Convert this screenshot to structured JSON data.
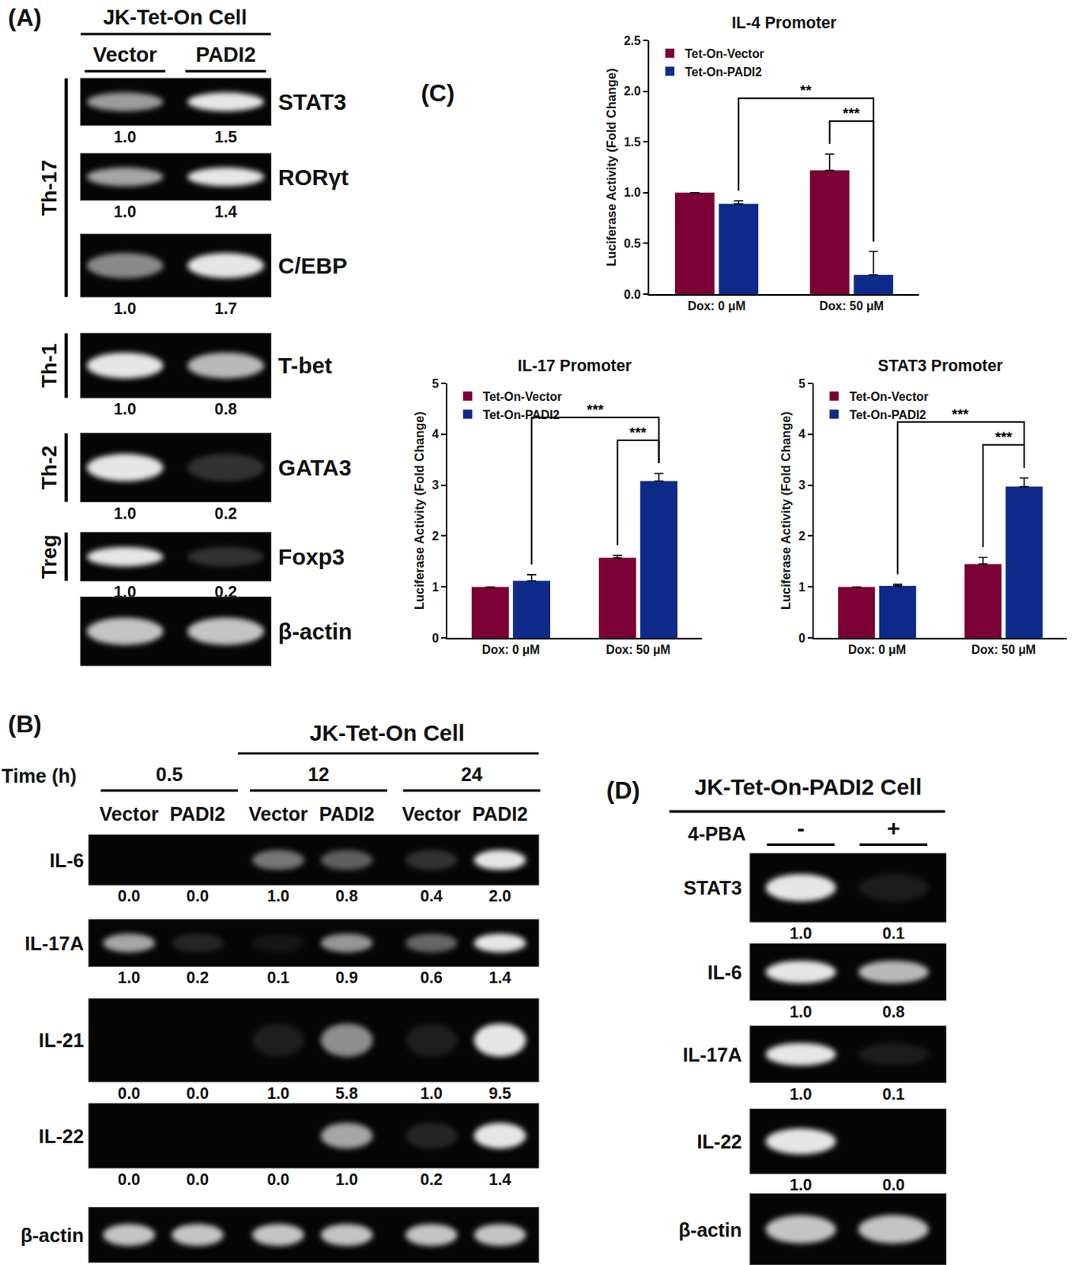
{
  "panels": {
    "A": {
      "label": "(A)",
      "header": "JK-Tet-On Cell",
      "lanes": [
        "Vector",
        "PADI2"
      ],
      "groups": [
        {
          "name": "Th-17",
          "markers": [
            "STAT3",
            "RORγt",
            "C/EBP"
          ]
        },
        {
          "name": "Th-1",
          "markers": [
            "T-bet"
          ]
        },
        {
          "name": "Th-2",
          "markers": [
            "GATA3"
          ]
        },
        {
          "name": "Treg",
          "markers": [
            "Foxp3"
          ]
        }
      ],
      "gels": [
        {
          "name": "STAT3",
          "values": [
            "1.0",
            "1.5"
          ]
        },
        {
          "name": "RORγt",
          "values": [
            "1.0",
            "1.4"
          ]
        },
        {
          "name": "C/EBP",
          "values": [
            "1.0",
            "1.7"
          ]
        },
        {
          "name": "T-bet",
          "values": [
            "1.0",
            "0.8"
          ]
        },
        {
          "name": "GATA3",
          "values": [
            "1.0",
            "0.2"
          ]
        },
        {
          "name": "Foxp3",
          "values": [
            "1.0",
            "0.2"
          ]
        },
        {
          "name": "β-actin"
        }
      ]
    },
    "B": {
      "label": "(B)",
      "header": "JK-Tet-On Cell",
      "time_label": "Time (h)",
      "times": [
        "0.5",
        "12",
        "24"
      ],
      "lanes": [
        "Vector",
        "PADI2"
      ],
      "gels": [
        {
          "name": "IL-6",
          "values": [
            "0.0",
            "0.0",
            "1.0",
            "0.8",
            "0.4",
            "2.0"
          ]
        },
        {
          "name": "IL-17A",
          "values": [
            "1.0",
            "0.2",
            "0.1",
            "0.9",
            "0.6",
            "1.4"
          ]
        },
        {
          "name": "IL-21",
          "values": [
            "0.0",
            "0.0",
            "1.0",
            "5.8",
            "1.0",
            "9.5"
          ]
        },
        {
          "name": "IL-22",
          "values": [
            "0.0",
            "0.0",
            "0.0",
            "1.0",
            "0.2",
            "1.4"
          ]
        },
        {
          "name": "β-actin"
        }
      ]
    },
    "C": {
      "label": "(C)"
    },
    "D": {
      "label": "(D)",
      "header": "JK-Tet-On-PADI2 Cell",
      "treatment": "4-PBA",
      "conditions": [
        "-",
        "+"
      ],
      "gels": [
        {
          "name": "STAT3",
          "values": [
            "1.0",
            "0.1"
          ]
        },
        {
          "name": "IL-6",
          "values": [
            "1.0",
            "0.8"
          ]
        },
        {
          "name": "IL-17A",
          "values": [
            "1.0",
            "0.1"
          ]
        },
        {
          "name": "IL-22",
          "values": [
            "1.0",
            "0.0"
          ]
        },
        {
          "name": "β-actin"
        }
      ]
    }
  },
  "chart_data": [
    {
      "type": "bar",
      "title": "IL-4 Promoter",
      "ylabel": "Luciferase Activity (Fold Change)",
      "categories": [
        "Dox: 0 μM",
        "Dox: 50 μM"
      ],
      "series": [
        {
          "name": "Tet-On-Vector",
          "color": "#7a0036",
          "values": [
            1.0,
            1.22
          ],
          "errors": [
            0,
            0.16
          ]
        },
        {
          "name": "Tet-On-PADI2",
          "color": "#0d2a8a",
          "values": [
            0.89,
            0.19
          ],
          "errors": [
            0.03,
            0.23
          ]
        }
      ],
      "ylim": [
        0,
        2.5
      ],
      "yticks": [
        {
          "value": 0,
          "label": "0.0"
        },
        {
          "value": 0.5,
          "label": "0.5"
        },
        {
          "value": 1,
          "label": "1.0"
        },
        {
          "value": 1.5,
          "label": "1.5"
        },
        {
          "value": 2,
          "label": "2.0"
        },
        {
          "value": 2.5,
          "label": "2.5"
        }
      ],
      "grid": false,
      "legend": "upper left",
      "significance": [
        {
          "text": "***",
          "from": {
            "series": "Tet-On-Vector",
            "category": "Dox: 50 μM"
          },
          "to": {
            "series": "Tet-On-PADI2",
            "category": "Dox: 50 μM"
          }
        },
        {
          "text": "**",
          "from": {
            "series": "Tet-On-PADI2",
            "category": "Dox: 0 μM"
          },
          "to": {
            "series": "Tet-On-PADI2",
            "category": "Dox: 50 μM"
          }
        }
      ]
    },
    {
      "type": "bar",
      "title": "IL-17 Promoter",
      "ylabel": "Luciferase Activity (Fold Change)",
      "categories": [
        "Dox: 0 μM",
        "Dox: 50 μM"
      ],
      "series": [
        {
          "name": "Tet-On-Vector",
          "color": "#7a0036",
          "values": [
            1.0,
            1.57
          ],
          "errors": [
            0,
            0.05
          ]
        },
        {
          "name": "Tet-On-PADI2",
          "color": "#0d2a8a",
          "values": [
            1.12,
            3.08
          ],
          "errors": [
            0.12,
            0.15
          ]
        }
      ],
      "ylim": [
        0,
        5
      ],
      "yticks": [
        0,
        1,
        2,
        3,
        4,
        5
      ],
      "grid": false,
      "legend": "upper left",
      "significance": [
        {
          "text": "***",
          "from": {
            "series": "Tet-On-Vector",
            "category": "Dox: 50 μM"
          },
          "to": {
            "series": "Tet-On-PADI2",
            "category": "Dox: 50 μM"
          }
        },
        {
          "text": "***",
          "from": {
            "series": "Tet-On-PADI2",
            "category": "Dox: 0 μM"
          },
          "to": {
            "series": "Tet-On-PADI2",
            "category": "Dox: 50 μM"
          }
        }
      ]
    },
    {
      "type": "bar",
      "title": "STAT3 Promoter",
      "ylabel": "Luciferase Activity (Fold Change)",
      "categories": [
        "Dox: 0 μM",
        "Dox: 50 μM"
      ],
      "series": [
        {
          "name": "Tet-On-Vector",
          "color": "#7a0036",
          "values": [
            1.0,
            1.45
          ],
          "errors": [
            0,
            0.13
          ]
        },
        {
          "name": "Tet-On-PADI2",
          "color": "#0d2a8a",
          "values": [
            1.02,
            2.97
          ],
          "errors": [
            0.03,
            0.17
          ]
        }
      ],
      "ylim": [
        0,
        5
      ],
      "yticks": [
        0,
        1,
        2,
        3,
        4,
        5
      ],
      "grid": false,
      "legend": "upper left",
      "significance": [
        {
          "text": "***",
          "from": {
            "series": "Tet-On-Vector",
            "category": "Dox: 50 μM"
          },
          "to": {
            "series": "Tet-On-PADI2",
            "category": "Dox: 50 μM"
          }
        },
        {
          "text": "***",
          "from": {
            "series": "Tet-On-PADI2",
            "category": "Dox: 0 μM"
          },
          "to": {
            "series": "Tet-On-PADI2",
            "category": "Dox: 50 μM"
          }
        }
      ]
    }
  ]
}
